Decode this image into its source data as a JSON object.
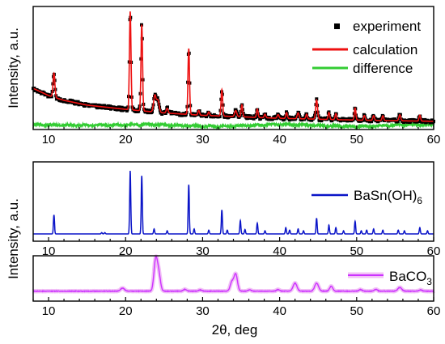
{
  "figure": {
    "ylabel_top": "Intensity, a.u.",
    "ylabel_bottom": "Intensity, a.u.",
    "xlabel": "2θ, deg"
  },
  "colors": {
    "experiment": "#000000",
    "calculation": "#ee1111",
    "difference": "#33cc33",
    "basnoh6": "#0a14c8",
    "baco3": "#cc33ff",
    "baco3_glow": "#f2c2f6"
  },
  "chart_data": [
    {
      "type": "scatter",
      "panel": "top",
      "xlim": [
        8,
        60
      ],
      "x_ticks": [
        10,
        20,
        30,
        40,
        50,
        60
      ],
      "x_tick_labels": [
        "10",
        "20",
        "30",
        "40",
        "50",
        "60"
      ],
      "ylabel": "Intensity, a.u.",
      "ylim": [
        0,
        1
      ],
      "legend_position": "top-right",
      "series": [
        {
          "name": "experiment",
          "style": "markers"
        },
        {
          "name": "calculation",
          "style": "line"
        },
        {
          "name": "difference",
          "style": "line"
        }
      ],
      "background": {
        "points": [
          [
            8,
            0.33
          ],
          [
            10,
            0.27
          ],
          [
            12,
            0.23
          ],
          [
            15,
            0.19
          ],
          [
            20,
            0.155
          ],
          [
            25,
            0.125
          ],
          [
            30,
            0.105
          ],
          [
            40,
            0.08
          ],
          [
            50,
            0.065
          ],
          [
            60,
            0.055
          ]
        ]
      },
      "peaks": [
        [
          10.7,
          0.2,
          0.12
        ],
        [
          20.6,
          0.82,
          0.1
        ],
        [
          22.1,
          0.72,
          0.1
        ],
        [
          23.8,
          0.14,
          0.16
        ],
        [
          24.2,
          0.1,
          0.16
        ],
        [
          25.4,
          0.04,
          0.12
        ],
        [
          28.2,
          0.55,
          0.1
        ],
        [
          29.5,
          0.04,
          0.1
        ],
        [
          30.8,
          0.03,
          0.1
        ],
        [
          32.5,
          0.22,
          0.1
        ],
        [
          34.3,
          0.05,
          0.14
        ],
        [
          35.1,
          0.1,
          0.1
        ],
        [
          37.1,
          0.07,
          0.1
        ],
        [
          38.1,
          0.03,
          0.1
        ],
        [
          39.8,
          0.03,
          0.12
        ],
        [
          40.9,
          0.05,
          0.1
        ],
        [
          42.4,
          0.05,
          0.12
        ],
        [
          43.5,
          0.04,
          0.1
        ],
        [
          44.8,
          0.16,
          0.12
        ],
        [
          46.4,
          0.06,
          0.1
        ],
        [
          47.3,
          0.05,
          0.1
        ],
        [
          49.8,
          0.1,
          0.1
        ],
        [
          51.0,
          0.04,
          0.1
        ],
        [
          52.2,
          0.04,
          0.1
        ],
        [
          53.4,
          0.04,
          0.1
        ],
        [
          55.6,
          0.05,
          0.12
        ],
        [
          58.2,
          0.05,
          0.1
        ]
      ],
      "difference_level": 0.02
    },
    {
      "type": "line",
      "panel": "middle",
      "xlim": [
        8,
        60
      ],
      "x_ticks": [
        10,
        20,
        30,
        40,
        50,
        60
      ],
      "x_tick_labels": [
        "10",
        "20",
        "30",
        "40",
        "50",
        "60"
      ],
      "ylim": [
        0,
        1
      ],
      "legend_position": "right",
      "series": [
        {
          "name": "BaSn(OH)6"
        }
      ],
      "peaks": [
        [
          10.7,
          0.3
        ],
        [
          16.9,
          0.02
        ],
        [
          17.3,
          0.02
        ],
        [
          20.6,
          1.0
        ],
        [
          22.1,
          0.92
        ],
        [
          23.7,
          0.08
        ],
        [
          25.4,
          0.05
        ],
        [
          28.2,
          0.78
        ],
        [
          28.9,
          0.08
        ],
        [
          30.8,
          0.06
        ],
        [
          32.5,
          0.38
        ],
        [
          33.2,
          0.06
        ],
        [
          34.9,
          0.21
        ],
        [
          35.5,
          0.07
        ],
        [
          37.1,
          0.17
        ],
        [
          38.1,
          0.05
        ],
        [
          40.8,
          0.1
        ],
        [
          41.3,
          0.06
        ],
        [
          42.4,
          0.08
        ],
        [
          43.1,
          0.05
        ],
        [
          44.8,
          0.25
        ],
        [
          46.4,
          0.14
        ],
        [
          47.3,
          0.1
        ],
        [
          48.3,
          0.05
        ],
        [
          49.8,
          0.2
        ],
        [
          50.6,
          0.05
        ],
        [
          51.3,
          0.06
        ],
        [
          52.2,
          0.08
        ],
        [
          53.4,
          0.06
        ],
        [
          55.4,
          0.06
        ],
        [
          56.2,
          0.05
        ],
        [
          58.2,
          0.1
        ],
        [
          59.2,
          0.05
        ]
      ]
    },
    {
      "type": "line",
      "panel": "bottom",
      "xlim": [
        8,
        60
      ],
      "x_ticks": [
        10,
        20,
        30,
        40,
        50,
        60
      ],
      "x_tick_labels": [
        "10",
        "20",
        "30",
        "40",
        "50",
        "60"
      ],
      "xlabel": "2θ, deg",
      "ylim": [
        0,
        1
      ],
      "legend_position": "right",
      "series": [
        {
          "name": "BaCO3"
        }
      ],
      "peaks": [
        [
          19.6,
          0.1,
          0.25
        ],
        [
          23.9,
          1.0,
          0.22
        ],
        [
          24.3,
          0.55,
          0.22
        ],
        [
          27.7,
          0.06,
          0.2
        ],
        [
          29.7,
          0.04,
          0.2
        ],
        [
          33.8,
          0.3,
          0.22
        ],
        [
          34.3,
          0.55,
          0.22
        ],
        [
          36.1,
          0.04,
          0.2
        ],
        [
          39.8,
          0.05,
          0.2
        ],
        [
          42.0,
          0.26,
          0.25
        ],
        [
          44.8,
          0.26,
          0.25
        ],
        [
          46.7,
          0.16,
          0.2
        ],
        [
          50.5,
          0.05,
          0.2
        ],
        [
          52.5,
          0.06,
          0.2
        ],
        [
          55.6,
          0.12,
          0.25
        ],
        [
          58.3,
          0.04,
          0.2
        ]
      ]
    }
  ],
  "legend": {
    "experiment": "experiment",
    "calculation": "calculation",
    "difference": "difference",
    "basnoh6_main": "BaSn(OH)",
    "basnoh6_sub": "6",
    "baco3_main": "BaCO",
    "baco3_sub": "3"
  }
}
